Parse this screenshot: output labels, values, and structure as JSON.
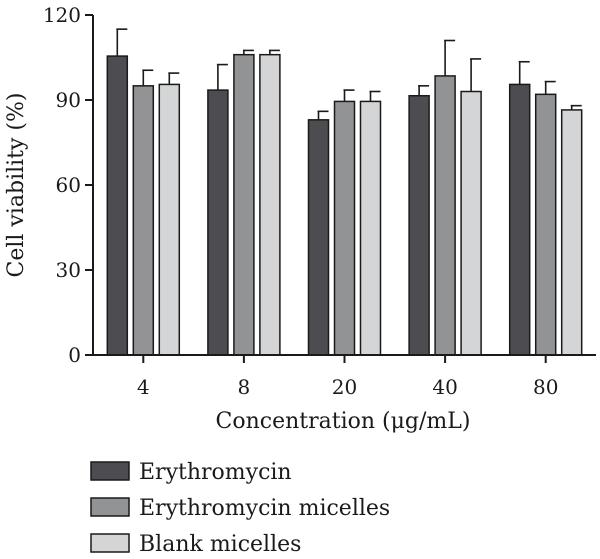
{
  "chart_data": {
    "type": "bar",
    "title": "",
    "xlabel": "Concentration (μg/mL)",
    "ylabel": "Cell viability (%)",
    "categories": [
      "4",
      "8",
      "20",
      "40",
      "80"
    ],
    "ylim": [
      0,
      120
    ],
    "yticks": [
      "0",
      "30",
      "60",
      "90",
      "120"
    ],
    "series": [
      {
        "name": "Erythromycin",
        "color": "#4d4d51",
        "values": [
          105.5,
          93.5,
          83.0,
          91.5,
          95.5
        ],
        "errors": [
          9.5,
          9.0,
          3.0,
          3.5,
          8.0
        ]
      },
      {
        "name": "Erythromycin micelles",
        "color": "#929395",
        "values": [
          95.0,
          106.0,
          89.5,
          98.5,
          92.0
        ],
        "errors": [
          5.5,
          1.5,
          4.0,
          12.5,
          4.5
        ]
      },
      {
        "name": "Blank micelles",
        "color": "#d4d5d6",
        "values": [
          95.5,
          106.0,
          89.5,
          93.0,
          86.5
        ],
        "errors": [
          4.0,
          1.5,
          3.5,
          11.5,
          1.5
        ]
      }
    ],
    "grid": false,
    "legend": "bottom-left"
  }
}
